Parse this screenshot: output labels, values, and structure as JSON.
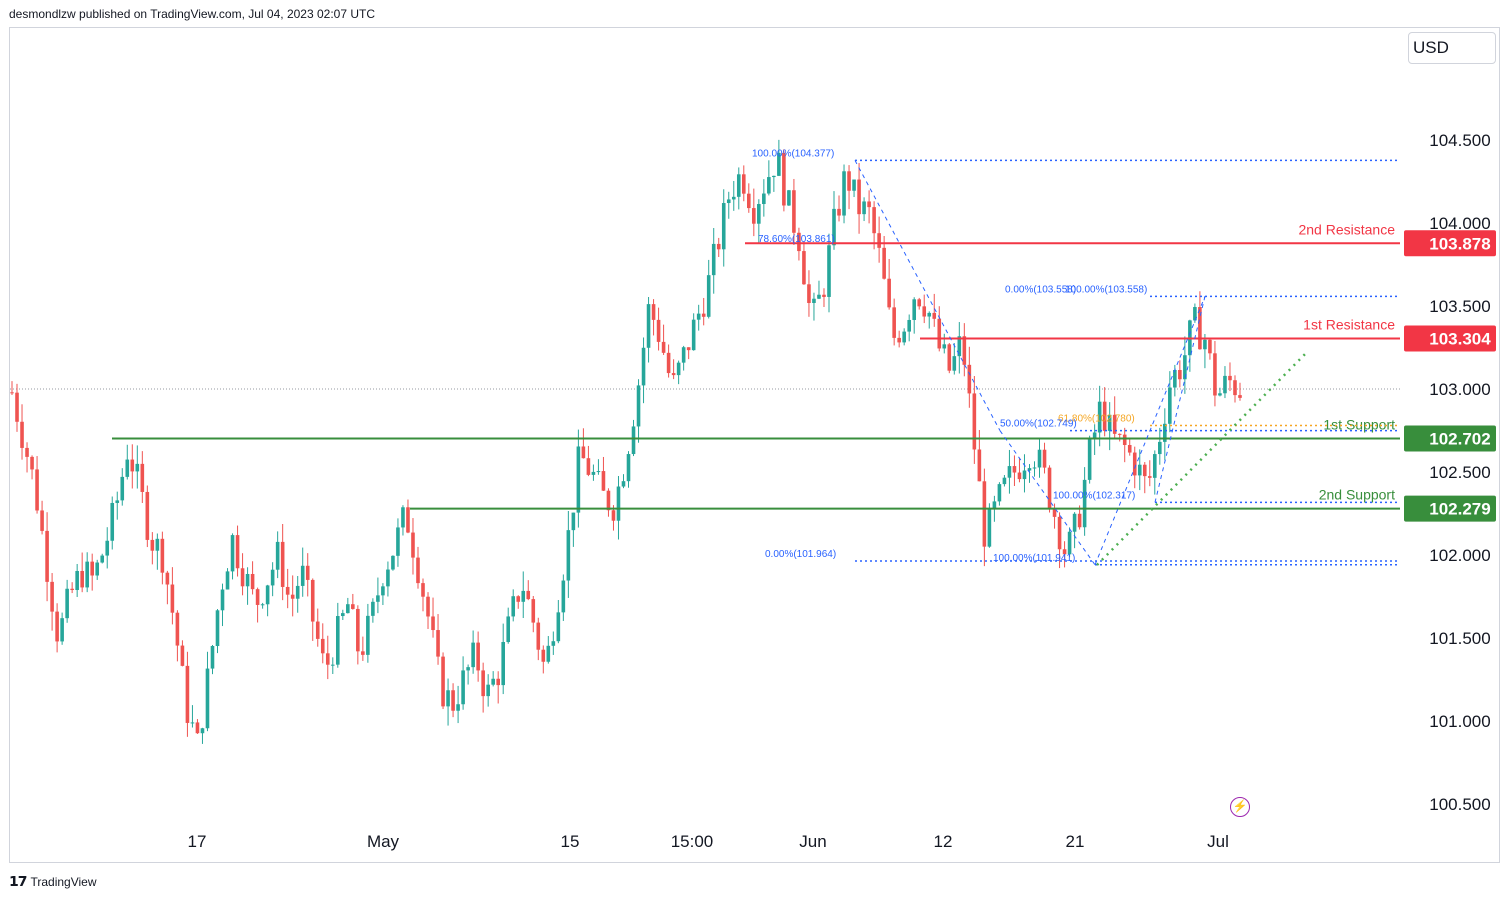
{
  "header": {
    "published": "desmondlzw published on TradingView.com, Jul 04, 2023 02:07 UTC"
  },
  "currency": "USD",
  "footer": {
    "brand": "TradingView",
    "logo": "tradingview-logo"
  },
  "icons": {
    "bolt": "lightning-icon"
  },
  "colors": {
    "up": "#26a69a",
    "down": "#ef5350",
    "resistance": "#f23645",
    "support": "#388e3c",
    "fib": "#2962ff"
  },
  "chart_data": {
    "type": "candlestick",
    "instrument": "USD",
    "y_axis": {
      "ticks": [
        "104.500",
        "104.000",
        "103.500",
        "103.000",
        "102.500",
        "102.000",
        "101.500",
        "101.000",
        "100.500"
      ],
      "ylim": [
        100.25,
        105.1
      ]
    },
    "x_axis": {
      "ticks": [
        "17",
        "May",
        "15",
        "15:00",
        "Jun",
        "12",
        "21",
        "Jul"
      ]
    },
    "last_price": 103.0,
    "levels": [
      {
        "name": "2nd Resistance",
        "value": 103.878,
        "label": "103.878",
        "color": "#f23645"
      },
      {
        "name": "1st Resistance",
        "value": 103.304,
        "label": "103.304",
        "color": "#f23645"
      },
      {
        "name": "1st Support",
        "value": 102.702,
        "label": "102.702",
        "color": "#388e3c"
      },
      {
        "name": "2nd Support",
        "value": 102.279,
        "label": "102.279",
        "color": "#388e3c"
      }
    ],
    "fib_labels": [
      {
        "text": "100.00%(104.377)",
        "value": 104.377
      },
      {
        "text": "78.60%(103.861)",
        "value": 103.861
      },
      {
        "text": "0.00%(103.558)",
        "value": 103.558
      },
      {
        "text": "100.00%(103.558)",
        "value": 103.558
      },
      {
        "text": "61.80%(102.780)",
        "value": 102.78
      },
      {
        "text": "50.00%(102.749)",
        "value": 102.749
      },
      {
        "text": "100.00%(102.317)",
        "value": 102.317
      },
      {
        "text": "0.00%(101.964)",
        "value": 101.964
      },
      {
        "text": "100.00%(101.941)",
        "value": 101.941
      }
    ],
    "price_path": [
      102.98,
      102.7,
      102.4,
      101.95,
      101.5,
      101.75,
      101.9,
      101.85,
      102.05,
      102.3,
      102.65,
      102.4,
      102.1,
      102.0,
      101.6,
      101.1,
      100.85,
      101.3,
      101.8,
      102.1,
      101.9,
      101.7,
      101.85,
      102.0,
      101.7,
      101.9,
      101.6,
      101.3,
      101.5,
      101.7,
      101.4,
      101.6,
      101.9,
      102.05,
      102.25,
      101.95,
      101.6,
      101.2,
      101.1,
      101.25,
      101.4,
      101.15,
      101.3,
      101.6,
      101.85,
      101.6,
      101.3,
      101.7,
      102.1,
      102.6,
      102.5,
      102.35,
      102.3,
      102.6,
      103.0,
      103.5,
      103.3,
      103.0,
      103.2,
      103.4,
      103.6,
      103.9,
      104.2,
      104.3,
      104.1,
      104.25,
      104.4,
      104.1,
      103.9,
      103.4,
      103.6,
      104.0,
      104.3,
      104.1,
      104.05,
      103.75,
      103.3,
      103.4,
      103.6,
      103.5,
      103.25,
      103.1,
      103.3,
      102.7,
      102.1,
      102.3,
      102.45,
      102.55,
      102.65,
      102.5,
      102.25,
      102.0,
      102.2,
      102.6,
      102.9,
      102.7,
      102.65,
      102.55,
      102.4,
      102.7,
      103.05,
      103.15,
      103.4,
      103.3,
      102.95,
      103.05,
      103.0
    ]
  }
}
